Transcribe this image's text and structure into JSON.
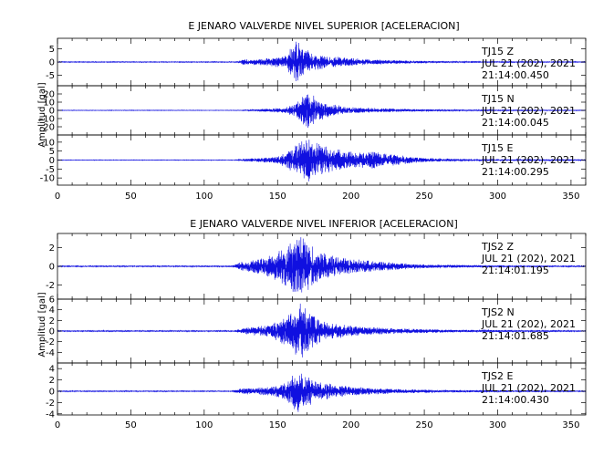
{
  "chart_data": [
    {
      "type": "line",
      "title": "E JENARO VALVERDE NIVEL SUPERIOR [ACELERACION]",
      "ylabel": "Amplitud [gal]",
      "xlabel": "",
      "xlim": [
        0,
        360
      ],
      "x_ticks": [
        0,
        50,
        100,
        150,
        200,
        250,
        300,
        350
      ],
      "series_color": "#1010e0",
      "traces": [
        {
          "label": "TJ15  Z",
          "date": "JUL 21 (202), 2021",
          "time": "21:14:00.450",
          "ylim": [
            -9,
            9
          ],
          "y_ticks": [
            5,
            0,
            -5
          ],
          "onset_s": 123,
          "peak_time_s": 163,
          "peak_amp": 8.5,
          "noise_amp": 0.15,
          "envelope": [
            [
              0,
              0.15
            ],
            [
              122,
              0.15
            ],
            [
              126,
              1.0
            ],
            [
              140,
              1.4
            ],
            [
              155,
              2.5
            ],
            [
              160,
              6.0
            ],
            [
              163,
              8.5
            ],
            [
              168,
              5.5
            ],
            [
              175,
              3.5
            ],
            [
              190,
              2.0
            ],
            [
              210,
              1.2
            ],
            [
              230,
              0.7
            ],
            [
              260,
              0.3
            ],
            [
              300,
              0.2
            ],
            [
              360,
              0.15
            ]
          ]
        },
        {
          "label": "TJ15  N",
          "date": "JUL 21 (202), 2021",
          "time": "21:14:00.045",
          "ylim": [
            -30,
            30
          ],
          "y_ticks": [
            20,
            10,
            0,
            -10,
            -20
          ],
          "onset_s": 125,
          "peak_time_s": 170,
          "peak_amp": 26,
          "noise_amp": 0.3,
          "envelope": [
            [
              0,
              0.3
            ],
            [
              124,
              0.3
            ],
            [
              135,
              1.0
            ],
            [
              155,
              3.5
            ],
            [
              163,
              9.0
            ],
            [
              170,
              26
            ],
            [
              176,
              16
            ],
            [
              185,
              8.0
            ],
            [
              200,
              4.0
            ],
            [
              220,
              2.5
            ],
            [
              250,
              1.2
            ],
            [
              300,
              0.6
            ],
            [
              360,
              0.4
            ]
          ]
        },
        {
          "label": "TJ15  E",
          "date": "JUL 21 (202), 2021",
          "time": "21:14:00.295",
          "ylim": [
            -14,
            14
          ],
          "y_ticks": [
            10,
            5,
            0,
            -5,
            -10
          ],
          "onset_s": 122,
          "peak_time_s": 170,
          "peak_amp": 13,
          "noise_amp": 0.15,
          "envelope": [
            [
              0,
              0.15
            ],
            [
              121,
              0.15
            ],
            [
              130,
              0.8
            ],
            [
              150,
              2.0
            ],
            [
              160,
              7.0
            ],
            [
              170,
              13
            ],
            [
              176,
              10
            ],
            [
              185,
              7.0
            ],
            [
              200,
              5.0
            ],
            [
              215,
              5.0
            ],
            [
              230,
              3.0
            ],
            [
              250,
              1.2
            ],
            [
              270,
              0.7
            ],
            [
              300,
              0.4
            ],
            [
              360,
              0.3
            ]
          ]
        }
      ]
    },
    {
      "type": "line",
      "title": "E JENARO VALVERDE NIVEL INFERIOR [ACELERACION]",
      "ylabel": "Amplitud [gal]",
      "xlabel": "",
      "xlim": [
        0,
        360
      ],
      "x_ticks": [
        0,
        50,
        100,
        150,
        200,
        250,
        300,
        350
      ],
      "series_color": "#1010e0",
      "traces": [
        {
          "label": "TJS2  Z",
          "date": "JUL 21 (202), 2021",
          "time": "21:14:01.195",
          "ylim": [
            -3.5,
            3.5
          ],
          "y_ticks": [
            2,
            0,
            -2
          ],
          "onset_s": 120,
          "peak_time_s": 163,
          "peak_amp": 3.3,
          "noise_amp": 0.06,
          "envelope": [
            [
              0,
              0.06
            ],
            [
              119,
              0.06
            ],
            [
              125,
              0.5
            ],
            [
              140,
              0.9
            ],
            [
              155,
              2.0
            ],
            [
              160,
              3.0
            ],
            [
              165,
              3.3
            ],
            [
              172,
              2.4
            ],
            [
              180,
              1.5
            ],
            [
              195,
              0.9
            ],
            [
              220,
              0.5
            ],
            [
              250,
              0.2
            ],
            [
              300,
              0.08
            ],
            [
              360,
              0.06
            ]
          ]
        },
        {
          "label": "TJS2  N",
          "date": "JUL 21 (202), 2021",
          "time": "21:14:01.685",
          "ylim": [
            -6,
            6
          ],
          "y_ticks": [
            6,
            4,
            2,
            0,
            -2,
            -4
          ],
          "onset_s": 121,
          "peak_time_s": 165,
          "peak_amp": 5.8,
          "noise_amp": 0.1,
          "envelope": [
            [
              0,
              0.1
            ],
            [
              120,
              0.1
            ],
            [
              128,
              0.6
            ],
            [
              145,
              1.2
            ],
            [
              157,
              3.0
            ],
            [
              162,
              4.5
            ],
            [
              166,
              5.8
            ],
            [
              172,
              3.5
            ],
            [
              180,
              2.0
            ],
            [
              200,
              1.0
            ],
            [
              230,
              0.5
            ],
            [
              270,
              0.25
            ],
            [
              360,
              0.1
            ]
          ]
        },
        {
          "label": "TJS2  E",
          "date": "JUL 21 (202), 2021",
          "time": "21:14:00.430",
          "ylim": [
            -4.2,
            5
          ],
          "y_ticks": [
            4,
            2,
            0,
            -2,
            -4
          ],
          "onset_s": 120,
          "peak_time_s": 163,
          "peak_amp": 4.2,
          "noise_amp": 0.08,
          "envelope": [
            [
              0,
              0.08
            ],
            [
              119,
              0.08
            ],
            [
              125,
              0.5
            ],
            [
              145,
              0.8
            ],
            [
              155,
              1.5
            ],
            [
              160,
              3.0
            ],
            [
              163,
              4.2
            ],
            [
              170,
              2.8
            ],
            [
              180,
              1.6
            ],
            [
              200,
              0.8
            ],
            [
              230,
              0.4
            ],
            [
              270,
              0.2
            ],
            [
              360,
              0.08
            ]
          ]
        }
      ]
    }
  ]
}
